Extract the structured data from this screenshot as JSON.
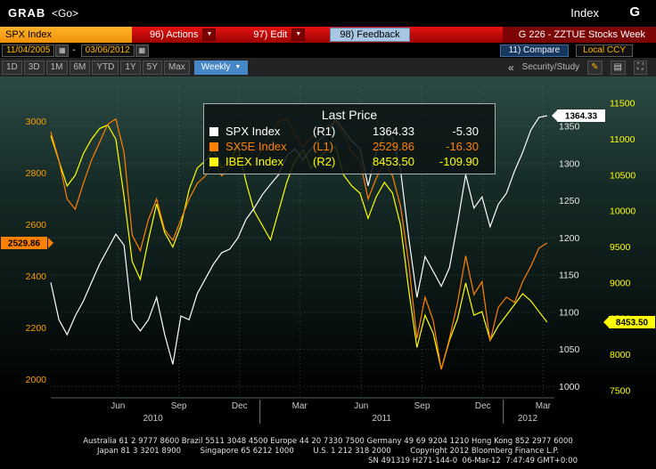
{
  "window": {
    "command": "GRAB",
    "go": "<Go>",
    "context": "Index",
    "function_key": "G"
  },
  "icons": {
    "dropdown": "▼",
    "calendar": "▦",
    "back": "«",
    "pencil": "✎",
    "panel": "▤",
    "expand": "⛶"
  },
  "menubar": {
    "security": "SPX Index",
    "actions": "96) Actions",
    "edit": "97) Edit",
    "feedback": "98) Feedback",
    "screen_title": "G 226 - ZZTUE Stocks Week"
  },
  "toolbar": {
    "date_from": "11/04/2005",
    "date_to": "03/06/2012",
    "dash": "-",
    "compare": "11) Compare",
    "currency": "Local CCY"
  },
  "tabbar": {
    "periods": [
      "1D",
      "3D",
      "1M",
      "6M",
      "YTD",
      "1Y",
      "5Y",
      "Max"
    ],
    "frequency": "Weekly",
    "security_study": "Security/Study"
  },
  "chart_data": {
    "type": "line",
    "title": "Last Price",
    "x_start": 2010.14,
    "x_end": 2012.21,
    "data_t_start": 2010.14,
    "data_t_end": 2012.18,
    "x_ticks": [
      {
        "t": 2010.416,
        "label": "Jun"
      },
      {
        "t": 2010.666,
        "label": "Sep"
      },
      {
        "t": 2010.916,
        "label": "Dec"
      },
      {
        "t": 2011.163,
        "label": "Mar"
      },
      {
        "t": 2011.416,
        "label": "Jun"
      },
      {
        "t": 2011.666,
        "label": "Sep"
      },
      {
        "t": 2011.916,
        "label": "Dec"
      },
      {
        "t": 2012.164,
        "label": "Mar"
      }
    ],
    "year_labels": [
      {
        "t": 2010.56,
        "label": "2010"
      },
      {
        "t": 2011.5,
        "label": "2011"
      },
      {
        "t": 2012.1,
        "label": "2012"
      }
    ],
    "year_dividers": [
      2011.0,
      2012.0
    ],
    "grid": true,
    "legend_position": "top-center",
    "axes": {
      "left": {
        "name": "L1",
        "label_color": "#ff9d00",
        "min": 1930,
        "max": 3140,
        "ticks": [
          3000,
          2800,
          2600,
          2400,
          2200,
          2000
        ]
      },
      "right1": {
        "name": "R1",
        "label_color": "#e8e8e8",
        "min": 985,
        "max": 1405,
        "ticks": [
          1350,
          1300,
          1250,
          1200,
          1150,
          1100,
          1050,
          1000
        ]
      },
      "right2": {
        "name": "R2",
        "label_color": "#ffff00",
        "min": 7400,
        "max": 11750,
        "ticks": [
          11500,
          11000,
          10500,
          10000,
          9500,
          9000,
          8500,
          8000,
          7500
        ]
      }
    },
    "series": [
      {
        "name": "SPX Index",
        "axis_label": "(R1)",
        "axis": "right1",
        "color": "#ffffff",
        "last": "1364.33",
        "change": "-5.30",
        "values": [
          1140,
          1090,
          1070,
          1095,
          1115,
          1140,
          1165,
          1185,
          1205,
          1190,
          1090,
          1075,
          1090,
          1120,
          1070,
          1030,
          1095,
          1090,
          1125,
          1145,
          1165,
          1180,
          1185,
          1200,
          1225,
          1240,
          1258,
          1272,
          1285,
          1310,
          1320,
          1305,
          1320,
          1332,
          1340,
          1360,
          1345,
          1330,
          1320,
          1270,
          1315,
          1340,
          1335,
          1290,
          1200,
          1120,
          1175,
          1155,
          1135,
          1160,
          1220,
          1285,
          1240,
          1255,
          1215,
          1245,
          1260,
          1290,
          1315,
          1345,
          1362,
          1364.33
        ]
      },
      {
        "name": "SX5E Index",
        "axis_label": "(L1)",
        "axis": "left",
        "color": "#ff8000",
        "last": "2529.86",
        "change": "-16.30",
        "values": [
          2960,
          2850,
          2700,
          2660,
          2760,
          2850,
          2920,
          2990,
          3010,
          2880,
          2560,
          2500,
          2620,
          2700,
          2580,
          2540,
          2620,
          2700,
          2760,
          2790,
          2840,
          2790,
          2820,
          2870,
          2840,
          2835,
          2900,
          2950,
          3000,
          3010,
          2950,
          2900,
          2940,
          2960,
          2980,
          3000,
          2950,
          2880,
          2850,
          2700,
          2780,
          2840,
          2790,
          2670,
          2450,
          2160,
          2320,
          2230,
          2040,
          2160,
          2300,
          2480,
          2330,
          2380,
          2150,
          2280,
          2320,
          2300,
          2380,
          2440,
          2510,
          2529.86
        ]
      },
      {
        "name": "IBEX Index",
        "axis_label": "(R2)",
        "axis": "right2",
        "color": "#ffff00",
        "last": "8453.50",
        "change": "-109.90",
        "values": [
          11050,
          10700,
          10350,
          10500,
          10800,
          11000,
          11150,
          11200,
          11000,
          10200,
          9300,
          9050,
          9600,
          10100,
          9700,
          9500,
          9800,
          10300,
          10600,
          10700,
          10850,
          10600,
          10700,
          10900,
          10400,
          10000,
          9800,
          9600,
          10000,
          10400,
          10700,
          10850,
          10600,
          10750,
          10850,
          10900,
          10500,
          10350,
          10250,
          9900,
          10200,
          10400,
          10250,
          9800,
          8900,
          8100,
          8550,
          8300,
          7800,
          8200,
          8500,
          9000,
          8550,
          8600,
          8200,
          8400,
          8550,
          8700,
          8850,
          8750,
          8600,
          8453.5
        ]
      }
    ]
  },
  "footer": {
    "line1": "Australia 61 2 9777 8600 Brazil 5511 3048 4500 Europe 44 20 7330 7500 Germany 49 69 9204 1210 Hong Kong 852 2977 6000",
    "line2": "Japan 81 3 3201 8900        Singapore 65 6212 1000        U.S. 1 212 318 2000        Copyright 2012 Bloomberg Finance L.P.",
    "line3": "SN 491319 H271-144-0  06-Mar-12  7:47:49 GMT+0:00"
  }
}
